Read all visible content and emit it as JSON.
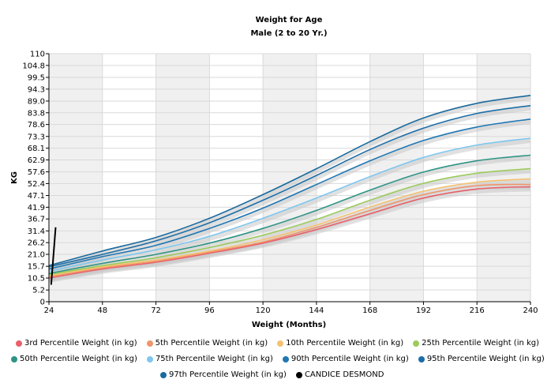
{
  "chart_data": {
    "type": "line",
    "title": "Weight for Age",
    "subtitle": "Male (2 to 20 Yr.)",
    "xlabel": "Weight (Months)",
    "ylabel": "KG",
    "xlim": [
      24,
      240
    ],
    "ylim": [
      0,
      110
    ],
    "x_ticks": [
      "24",
      "48",
      "72",
      "96",
      "120",
      "144",
      "168",
      "192",
      "216",
      "240"
    ],
    "y_ticks": [
      "0",
      "5.2",
      "10.5",
      "15.7",
      "21.0",
      "26.2",
      "31.4",
      "36.7",
      "41.9",
      "47.1",
      "52.4",
      "57.6",
      "62.9",
      "68.1",
      "73.3",
      "78.6",
      "83.8",
      "89.0",
      "94.3",
      "99.5",
      "104.8",
      "110"
    ],
    "grid": true,
    "legend_position": "bottom",
    "x": [
      24,
      48,
      72,
      96,
      120,
      144,
      168,
      192,
      216,
      240
    ],
    "series": [
      {
        "name": "3rd Percentile Weight (in kg)",
        "color": "#e8606a",
        "values": [
          10.5,
          14.5,
          17.5,
          21.5,
          26.0,
          32.0,
          39.0,
          46.0,
          50.0,
          51.0
        ]
      },
      {
        "name": "5th Percentile Weight (in kg)",
        "color": "#f0956a",
        "values": [
          11.0,
          15.0,
          18.0,
          22.0,
          26.5,
          33.0,
          40.5,
          47.5,
          51.5,
          52.0
        ]
      },
      {
        "name": "10th Percentile Weight (in kg)",
        "color": "#f5c272",
        "values": [
          11.5,
          15.5,
          18.5,
          22.5,
          27.5,
          34.0,
          42.0,
          49.0,
          53.0,
          54.5
        ]
      },
      {
        "name": "25th Percentile Weight (in kg)",
        "color": "#9ccb5c",
        "values": [
          12.0,
          16.0,
          19.5,
          24.0,
          29.5,
          36.5,
          45.0,
          52.5,
          57.0,
          59.0
        ]
      },
      {
        "name": "50th Percentile Weight (in kg)",
        "color": "#2e9485",
        "values": [
          12.5,
          17.0,
          21.0,
          26.0,
          32.5,
          40.5,
          49.5,
          57.5,
          62.5,
          65.0
        ]
      },
      {
        "name": "75th Percentile Weight (in kg)",
        "color": "#7ec7ef",
        "values": [
          13.5,
          18.5,
          23.0,
          29.0,
          37.0,
          46.0,
          55.5,
          64.0,
          69.5,
          72.5
        ]
      },
      {
        "name": "90th Percentile Weight (in kg)",
        "color": "#1f77b4",
        "values": [
          14.5,
          20.0,
          25.0,
          32.5,
          41.5,
          52.0,
          62.5,
          71.5,
          77.5,
          81.0
        ]
      },
      {
        "name": "95th Percentile Weight (in kg)",
        "color": "#1c6ea8",
        "values": [
          15.5,
          21.0,
          27.0,
          35.0,
          45.0,
          56.0,
          67.5,
          77.0,
          83.5,
          87.0
        ]
      },
      {
        "name": "97th Percentile Weight (in kg)",
        "color": "#1a6a9e",
        "values": [
          16.0,
          22.5,
          28.5,
          37.0,
          47.5,
          59.0,
          71.0,
          81.5,
          88.0,
          91.5
        ]
      }
    ],
    "patient": {
      "name": "CANDICE  DESMOND",
      "color": "#000000",
      "points": [
        [
          25.0,
          7.5
        ],
        [
          27.0,
          33.0
        ]
      ]
    }
  }
}
